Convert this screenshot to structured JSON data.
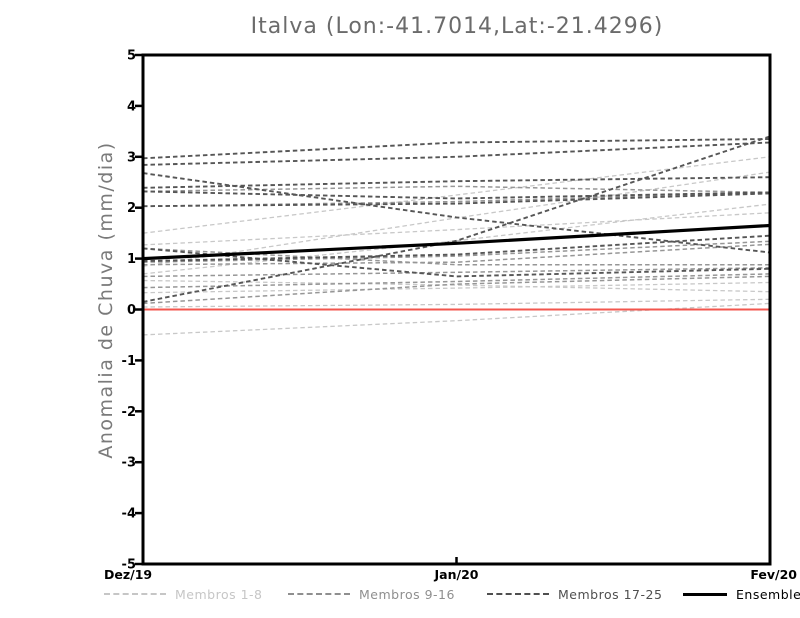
{
  "chart_data": {
    "type": "line",
    "title": "Italva (Lon:-41.7014,Lat:-21.4296)",
    "xlabel": "",
    "ylabel": "Anomalia de Chuva (mm/dia)",
    "x_categories": [
      "Dez/19",
      "Jan/20",
      "Fev/20"
    ],
    "ylim": [
      -5,
      5
    ],
    "yticks": [
      -5,
      -4,
      -3,
      -2,
      -1,
      0,
      1,
      2,
      3,
      4,
      5
    ],
    "grid": false,
    "legend_position": "bottom",
    "frame_color": "#000000",
    "groups": [
      {
        "name": "Membros 1-8",
        "color": "#c8c8c8",
        "width": 1.3,
        "dashed": true,
        "series": [
          [
            0.05,
            0.1,
            0.2
          ],
          [
            -0.5,
            -0.22,
            0.12
          ],
          [
            0.33,
            0.42,
            0.53
          ],
          [
            0.57,
            0.48,
            0.35
          ],
          [
            0.7,
            1.35,
            2.07
          ],
          [
            0.85,
            1.8,
            2.7
          ],
          [
            1.5,
            2.25,
            3.0
          ],
          [
            1.27,
            1.57,
            1.9
          ]
        ]
      },
      {
        "name": "Membros 9-16",
        "color": "#969696",
        "width": 1.5,
        "dashed": true,
        "series": [
          [
            0.43,
            0.55,
            0.7
          ],
          [
            0.65,
            0.73,
            0.82
          ],
          [
            0.88,
            0.93,
            1.28
          ],
          [
            0.93,
            1.05,
            1.34
          ],
          [
            1.2,
            0.88,
            0.88
          ],
          [
            0.12,
            0.5,
            0.65
          ],
          [
            2.03,
            2.12,
            2.3
          ],
          [
            2.32,
            2.42,
            2.3
          ]
        ]
      },
      {
        "name": "Membros 17-25",
        "color": "#565656",
        "width": 1.9,
        "dashed": true,
        "series": [
          [
            2.97,
            3.28,
            3.35
          ],
          [
            2.84,
            3.0,
            3.28
          ],
          [
            2.68,
            1.81,
            1.12
          ],
          [
            2.39,
            2.52,
            2.6
          ],
          [
            2.32,
            2.18,
            2.3
          ],
          [
            2.03,
            2.08,
            2.28
          ],
          [
            0.15,
            1.35,
            3.4
          ],
          [
            1.2,
            0.65,
            0.8
          ],
          [
            0.95,
            1.08,
            1.45
          ]
        ]
      }
    ],
    "ensemble_mean": {
      "name": "Ensemble Mean",
      "color": "#000000",
      "width": 3.2,
      "values": [
        1.0,
        1.3,
        1.65
      ]
    },
    "zero_line": {
      "value": 0,
      "color": "#f3564e",
      "width": 2
    }
  },
  "legend": {
    "items": [
      {
        "label": "Membros 1-8",
        "color": "#c6c6c6",
        "style": "dashed"
      },
      {
        "label": "Membros 9-16",
        "color": "#8f8f8f",
        "style": "dashed"
      },
      {
        "label": "Membros 17-25",
        "color": "#4f4f4f",
        "style": "dashed"
      },
      {
        "label": "Ensemble Mean",
        "color": "#000000",
        "style": "solid"
      }
    ]
  }
}
